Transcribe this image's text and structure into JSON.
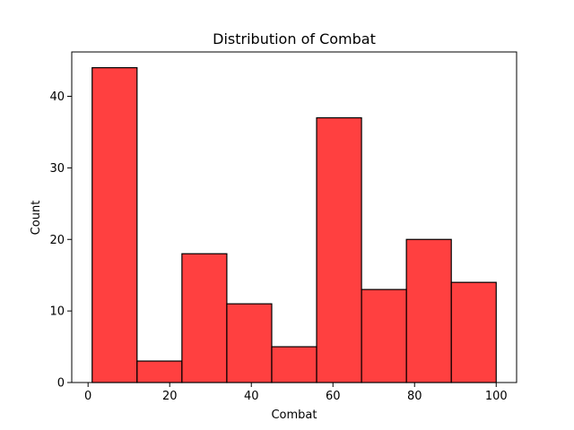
{
  "chart_data": {
    "type": "bar",
    "title": "Distribution of Combat",
    "xlabel": "Combat",
    "ylabel": "Count",
    "bins": [
      {
        "start": 1,
        "end": 12,
        "count": 44
      },
      {
        "start": 12,
        "end": 23,
        "count": 3
      },
      {
        "start": 23,
        "end": 34,
        "count": 18
      },
      {
        "start": 34,
        "end": 45,
        "count": 11
      },
      {
        "start": 45,
        "end": 56,
        "count": 5
      },
      {
        "start": 56,
        "end": 67,
        "count": 37
      },
      {
        "start": 67,
        "end": 78,
        "count": 13
      },
      {
        "start": 78,
        "end": 89,
        "count": 20
      },
      {
        "start": 89,
        "end": 100,
        "count": 14
      }
    ],
    "xlim": [
      -4.0,
      105.0
    ],
    "ylim": [
      0,
      46.2
    ],
    "xticks": [
      0,
      20,
      40,
      60,
      80,
      100
    ],
    "yticks": [
      0,
      10,
      20,
      30,
      40
    ],
    "bar_color": "#ff0000",
    "bar_alpha": 0.75,
    "edge_color": "#000000",
    "grid": false,
    "legend": false
  }
}
